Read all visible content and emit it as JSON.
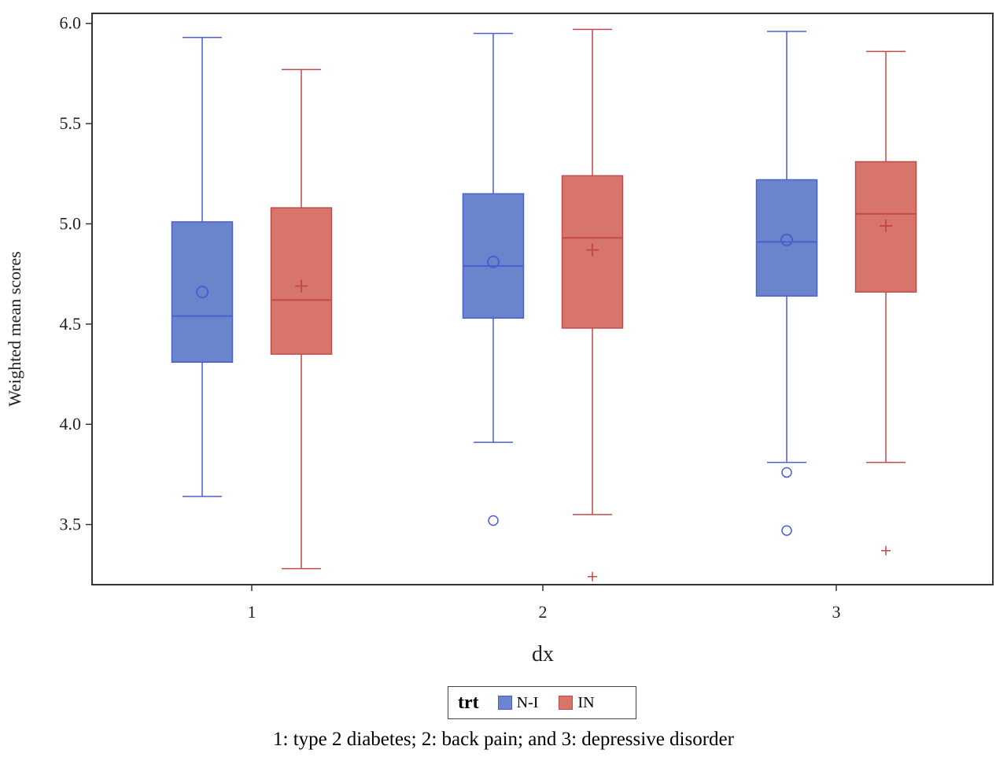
{
  "chart_data": {
    "type": "box",
    "xlabel": "dx",
    "ylabel": "Weighted mean scores",
    "ylim": [
      3.2,
      6.05
    ],
    "yticks": [
      "3.5",
      "4.0",
      "4.5",
      "5.0",
      "5.5",
      "6.0"
    ],
    "categories": [
      "1",
      "2",
      "3"
    ],
    "legend_title": "trt",
    "legend_position": "bottom-center",
    "series": [
      {
        "name": "N-I",
        "color": "#6b85cc",
        "edge_color": "#4a5fd0",
        "mean_marker": "circle",
        "boxes": [
          {
            "min": 3.64,
            "q1": 4.31,
            "median": 4.54,
            "q3": 5.01,
            "max": 5.93,
            "mean": 4.66,
            "outliers": []
          },
          {
            "min": 3.91,
            "q1": 4.53,
            "median": 4.79,
            "q3": 5.15,
            "max": 5.95,
            "mean": 4.81,
            "outliers": [
              3.52
            ]
          },
          {
            "min": 3.81,
            "q1": 4.64,
            "median": 4.91,
            "q3": 5.22,
            "max": 5.96,
            "mean": 4.92,
            "outliers": [
              3.76,
              3.47
            ]
          }
        ]
      },
      {
        "name": "IN",
        "color": "#d8756a",
        "edge_color": "#c24a4a",
        "mean_marker": "plus",
        "boxes": [
          {
            "min": 3.28,
            "q1": 4.35,
            "median": 4.62,
            "q3": 5.08,
            "max": 5.77,
            "mean": 4.69,
            "outliers": []
          },
          {
            "min": 3.55,
            "q1": 4.48,
            "median": 4.93,
            "q3": 5.24,
            "max": 5.97,
            "mean": 4.87,
            "outliers": [
              3.24
            ]
          },
          {
            "min": 3.81,
            "q1": 4.66,
            "median": 5.05,
            "q3": 5.31,
            "max": 5.86,
            "mean": 4.99,
            "outliers": [
              3.37
            ]
          }
        ]
      }
    ]
  },
  "caption": "1: type 2 diabetes; 2: back pain; and 3: depressive disorder"
}
